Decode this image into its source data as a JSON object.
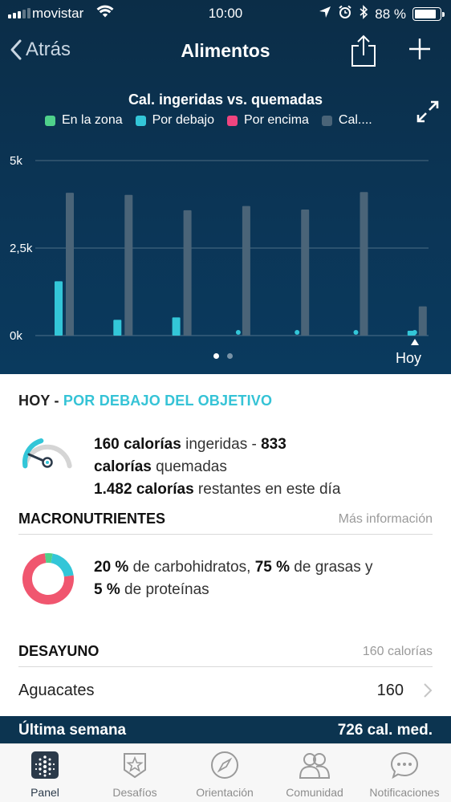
{
  "status_bar": {
    "carrier": "movistar",
    "time": "10:00",
    "battery": "88 %",
    "battery_level": 0.88
  },
  "nav": {
    "back_label": "Atrás",
    "title": "Alimentos"
  },
  "chart_data": {
    "type": "bar",
    "title": "Cal. ingeridas vs. quemadas",
    "legend": [
      {
        "name": "En la zona",
        "color": "#4fd18b"
      },
      {
        "name": "Por debajo",
        "color": "#33c6d8"
      },
      {
        "name": "Por encima",
        "color": "#f0457f"
      },
      {
        "name": "Cal....",
        "color": "#4a6478"
      }
    ],
    "y_ticks": [
      "5k",
      "2,5k",
      "0k"
    ],
    "ylim": [
      0,
      5000
    ],
    "categories": [
      "",
      "",
      "",
      "",
      "",
      "",
      "Hoy"
    ],
    "series": [
      {
        "name": "Por debajo",
        "color": "#33c6d8",
        "values": [
          1550,
          450,
          520,
          80,
          100,
          100,
          160
        ]
      },
      {
        "name": "Cal....",
        "color": "#4a6478",
        "values": [
          4080,
          4020,
          3580,
          3700,
          3600,
          4100,
          833
        ]
      }
    ],
    "grid": true
  },
  "pager": {
    "pages": 2,
    "active": 0
  },
  "today": {
    "label": "HOY",
    "separator": " - ",
    "status": "POR DEBAJO DEL OBJETIVO",
    "consumed": "160 calorías",
    "consumed_suffix": " ingeridas - ",
    "burned_num": "833",
    "burned_word": "calorías",
    "burned_suffix": " quemadas",
    "remaining": "1.482 calorías",
    "remaining_suffix": " restantes en este día",
    "gauge_fraction": 0.12
  },
  "macros": {
    "header": "MACRONUTRIENTES",
    "more": "Más información",
    "carbs": "20 %",
    "carbs_suffix": " de carbohidratos, ",
    "fat": "75 %",
    "fat_suffix": " de grasas y",
    "protein": "5 %",
    "protein_suffix": " de proteínas",
    "chart": [
      {
        "name": "grasas",
        "percent": 75,
        "color": "#f0566f"
      },
      {
        "name": "carbohidratos",
        "percent": 20,
        "color": "#33c6d8"
      },
      {
        "name": "proteínas",
        "percent": 5,
        "color": "#4fd18b"
      }
    ]
  },
  "breakfast": {
    "header": "DESAYUNO",
    "calories": "160 calorías",
    "items": [
      {
        "name": "Aguacates",
        "calories": "160"
      }
    ]
  },
  "week": {
    "label": "Última semana",
    "value": "726 cal. med."
  },
  "tabs": [
    {
      "label": "Panel",
      "icon": "dashboard-icon"
    },
    {
      "label": "Desafíos",
      "icon": "star-badge-icon"
    },
    {
      "label": "Orientación",
      "icon": "compass-icon"
    },
    {
      "label": "Comunidad",
      "icon": "people-icon"
    },
    {
      "label": "Notificaciones",
      "icon": "chat-bubble-icon"
    }
  ]
}
